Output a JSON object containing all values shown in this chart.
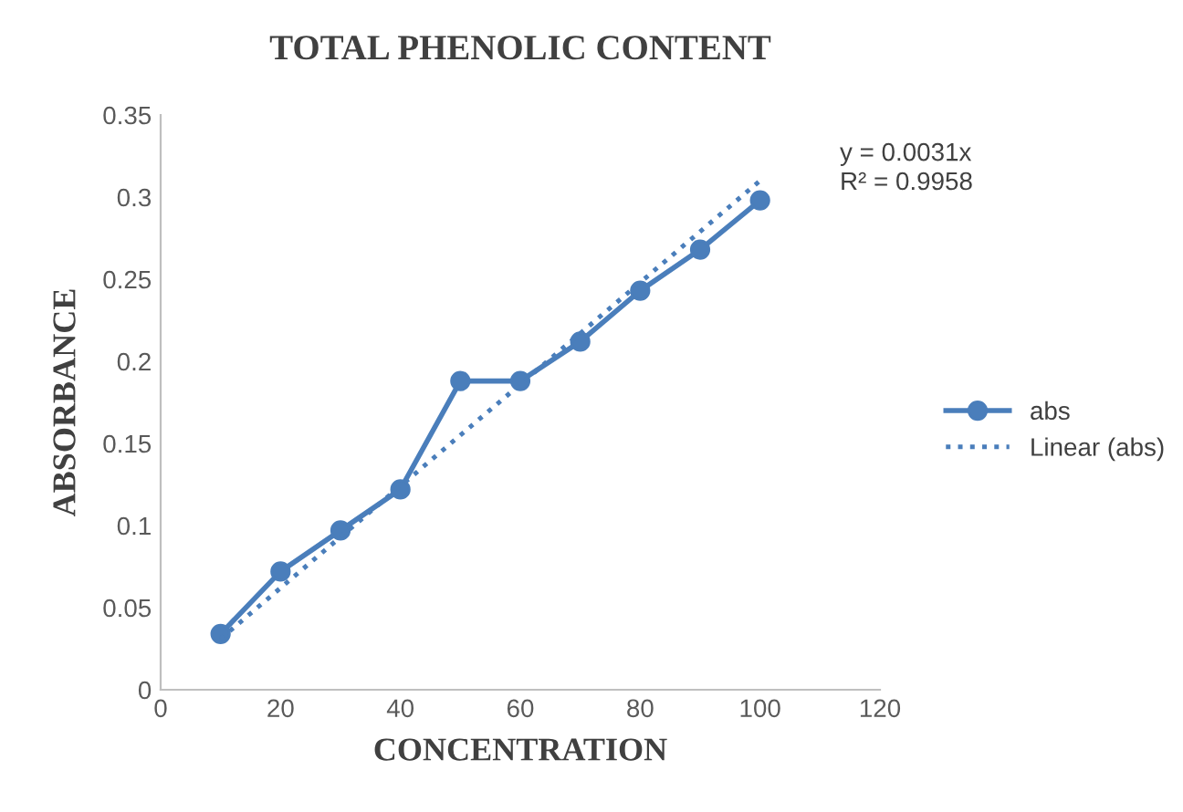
{
  "chart_data": {
    "type": "line",
    "title": "TOTAL PHENOLIC CONTENT",
    "xlabel": "CONCENTRATION",
    "ylabel": "ABSORBANCE",
    "series": [
      {
        "name": "abs",
        "color": "#4a7ebb",
        "x": [
          10,
          20,
          30,
          40,
          50,
          60,
          70,
          80,
          90,
          100
        ],
        "values": [
          0.034,
          0.072,
          0.097,
          0.122,
          0.188,
          0.188,
          0.212,
          0.243,
          0.268,
          0.298
        ],
        "marker": "circle",
        "line_style": "solid"
      },
      {
        "name": "Linear (abs)",
        "color": "#4a7ebb",
        "x": [
          10,
          100
        ],
        "values": [
          0.031,
          0.31
        ],
        "marker": "none",
        "line_style": "dotted"
      }
    ],
    "annotations": [
      "y = 0.0031x\nR² = 0.9958"
    ],
    "xlim": [
      0,
      120
    ],
    "xticks": [
      0,
      20,
      40,
      60,
      80,
      100,
      120
    ],
    "ylim": [
      0,
      0.35
    ],
    "yticks": [
      0,
      0.05,
      0.1,
      0.15,
      0.2,
      0.25,
      0.3,
      0.35
    ],
    "grid": false,
    "legend": "right"
  }
}
